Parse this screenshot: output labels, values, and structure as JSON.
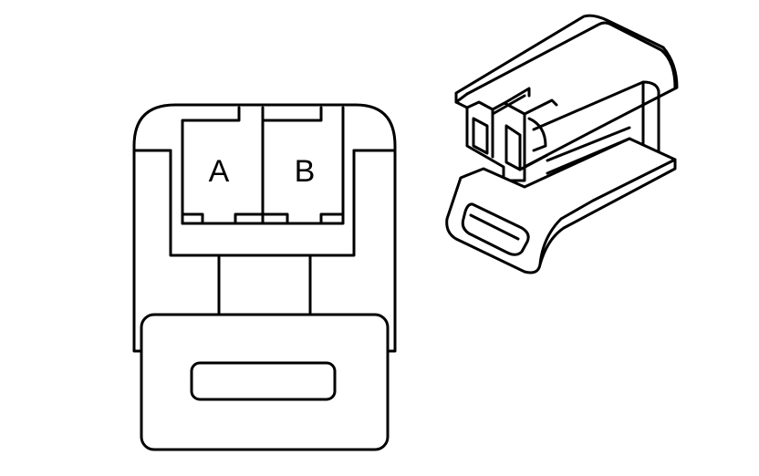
{
  "diagram": {
    "terminal_labels": {
      "a": "A",
      "b": "B"
    },
    "stroke_color": "#000000",
    "background_color": "#ffffff"
  }
}
